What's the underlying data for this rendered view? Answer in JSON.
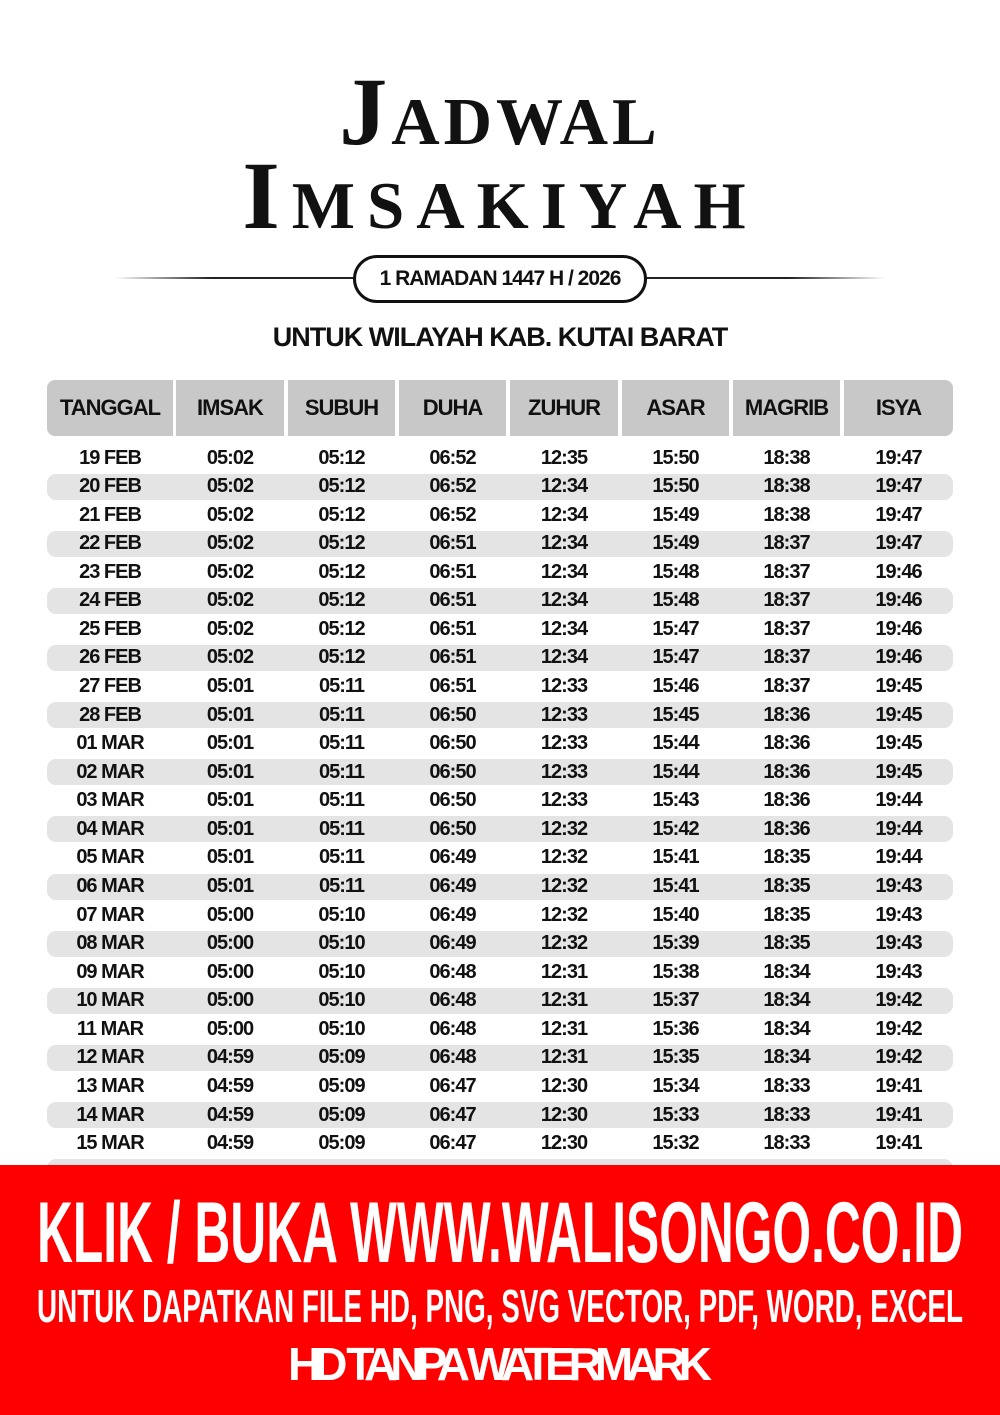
{
  "header": {
    "title_line1": "Jadwal",
    "title_line2": "Imsakiyah",
    "subtitle": "1 RAMADAN 1447 H / 2026",
    "region": "UNTUK WILAYAH KAB. KUTAI BARAT"
  },
  "table": {
    "columns": [
      "TANGGAL",
      "IMSAK",
      "SUBUH",
      "DUHA",
      "ZUHUR",
      "ASAR",
      "MAGRIB",
      "ISYA"
    ],
    "rows": [
      [
        "19 FEB",
        "05:02",
        "05:12",
        "06:52",
        "12:35",
        "15:50",
        "18:38",
        "19:47"
      ],
      [
        "20 FEB",
        "05:02",
        "05:12",
        "06:52",
        "12:34",
        "15:50",
        "18:38",
        "19:47"
      ],
      [
        "21 FEB",
        "05:02",
        "05:12",
        "06:52",
        "12:34",
        "15:49",
        "18:38",
        "19:47"
      ],
      [
        "22 FEB",
        "05:02",
        "05:12",
        "06:51",
        "12:34",
        "15:49",
        "18:37",
        "19:47"
      ],
      [
        "23 FEB",
        "05:02",
        "05:12",
        "06:51",
        "12:34",
        "15:48",
        "18:37",
        "19:46"
      ],
      [
        "24 FEB",
        "05:02",
        "05:12",
        "06:51",
        "12:34",
        "15:48",
        "18:37",
        "19:46"
      ],
      [
        "25 FEB",
        "05:02",
        "05:12",
        "06:51",
        "12:34",
        "15:47",
        "18:37",
        "19:46"
      ],
      [
        "26 FEB",
        "05:02",
        "05:12",
        "06:51",
        "12:34",
        "15:47",
        "18:37",
        "19:46"
      ],
      [
        "27 FEB",
        "05:01",
        "05:11",
        "06:51",
        "12:33",
        "15:46",
        "18:37",
        "19:45"
      ],
      [
        "28 FEB",
        "05:01",
        "05:11",
        "06:50",
        "12:33",
        "15:45",
        "18:36",
        "19:45"
      ],
      [
        "01 MAR",
        "05:01",
        "05:11",
        "06:50",
        "12:33",
        "15:44",
        "18:36",
        "19:45"
      ],
      [
        "02 MAR",
        "05:01",
        "05:11",
        "06:50",
        "12:33",
        "15:44",
        "18:36",
        "19:45"
      ],
      [
        "03 MAR",
        "05:01",
        "05:11",
        "06:50",
        "12:33",
        "15:43",
        "18:36",
        "19:44"
      ],
      [
        "04 MAR",
        "05:01",
        "05:11",
        "06:50",
        "12:32",
        "15:42",
        "18:36",
        "19:44"
      ],
      [
        "05 MAR",
        "05:01",
        "05:11",
        "06:49",
        "12:32",
        "15:41",
        "18:35",
        "19:44"
      ],
      [
        "06 MAR",
        "05:01",
        "05:11",
        "06:49",
        "12:32",
        "15:41",
        "18:35",
        "19:43"
      ],
      [
        "07 MAR",
        "05:00",
        "05:10",
        "06:49",
        "12:32",
        "15:40",
        "18:35",
        "19:43"
      ],
      [
        "08 MAR",
        "05:00",
        "05:10",
        "06:49",
        "12:32",
        "15:39",
        "18:35",
        "19:43"
      ],
      [
        "09 MAR",
        "05:00",
        "05:10",
        "06:48",
        "12:31",
        "15:38",
        "18:34",
        "19:43"
      ],
      [
        "10 MAR",
        "05:00",
        "05:10",
        "06:48",
        "12:31",
        "15:37",
        "18:34",
        "19:42"
      ],
      [
        "11 MAR",
        "05:00",
        "05:10",
        "06:48",
        "12:31",
        "15:36",
        "18:34",
        "19:42"
      ],
      [
        "12 MAR",
        "04:59",
        "05:09",
        "06:48",
        "12:31",
        "15:35",
        "18:34",
        "19:42"
      ],
      [
        "13 MAR",
        "04:59",
        "05:09",
        "06:47",
        "12:30",
        "15:34",
        "18:33",
        "19:41"
      ],
      [
        "14 MAR",
        "04:59",
        "05:09",
        "06:47",
        "12:30",
        "15:33",
        "18:33",
        "19:41"
      ],
      [
        "15 MAR",
        "04:59",
        "05:09",
        "06:47",
        "12:30",
        "15:32",
        "18:33",
        "19:41"
      ]
    ]
  },
  "banner": {
    "line1": "KLIK / BUKA WWW.WALISONGO.CO.ID",
    "line2": "UNTUK DAPATKAN FILE HD, PNG, SVG VECTOR, PDF, WORD, EXCEL",
    "line3": "HD TANPA WATERMARK",
    "color": "#ff0000"
  }
}
